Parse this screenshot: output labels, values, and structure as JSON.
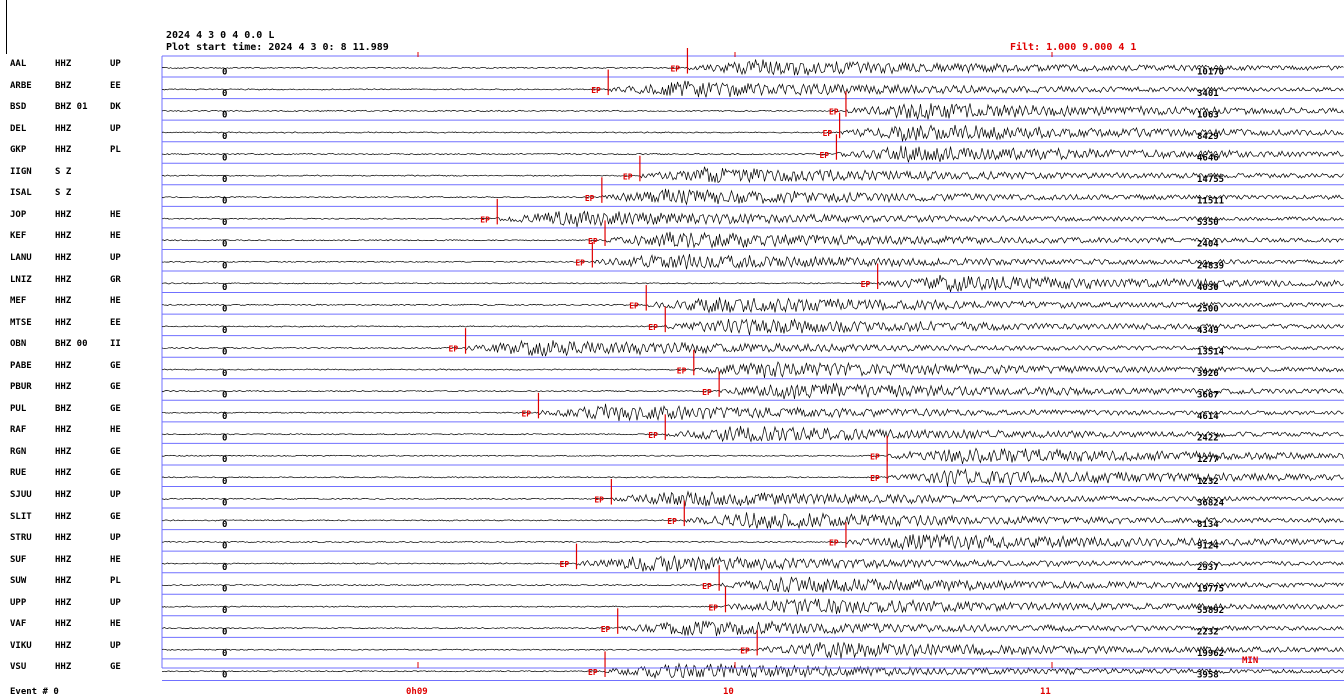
{
  "header": {
    "line1": "2024  4 3  0 4  0.0 L",
    "line2": "Plot start time: 2024   4  3    0: 8  11.989",
    "filter": "Filt:  1.000  9.000  4 1"
  },
  "stations": [
    {
      "sta": "AAL",
      "chan": "HHZ",
      "comp": "UP",
      "max": "10170",
      "pick": "EP",
      "pick_time": 9.85
    },
    {
      "sta": "ARBE",
      "chan": "BHZ",
      "comp": "EE",
      "max": "3401",
      "pick": "EP",
      "pick_time": 9.6
    },
    {
      "sta": "BSD",
      "chan": "BHZ 01",
      "comp": "DK",
      "max": "1063",
      "pick": "EP",
      "pick_time": 10.35
    },
    {
      "sta": "DEL",
      "chan": "HHZ",
      "comp": "UP",
      "max": "8429",
      "pick": "EP",
      "pick_time": 10.33
    },
    {
      "sta": "GKP",
      "chan": "HHZ",
      "comp": "PL",
      "max": "4646",
      "pick": "EP",
      "pick_time": 10.32
    },
    {
      "sta": "IIGN",
      "chan": "S Z",
      "comp": "",
      "max": "14755",
      "pick": "EP",
      "pick_time": 9.7
    },
    {
      "sta": "ISAL",
      "chan": "S Z",
      "comp": "",
      "max": "11511",
      "pick": "EP",
      "pick_time": 9.58
    },
    {
      "sta": "JOP",
      "chan": "HHZ",
      "comp": "HE",
      "max": "5350",
      "pick": "EP",
      "pick_time": 9.25
    },
    {
      "sta": "KEF",
      "chan": "HHZ",
      "comp": "HE",
      "max": "2404",
      "pick": "EP",
      "pick_time": 9.59
    },
    {
      "sta": "LANU",
      "chan": "HHZ",
      "comp": "UP",
      "max": "24839",
      "pick": "EP",
      "pick_time": 9.55
    },
    {
      "sta": "LNIZ",
      "chan": "HHZ",
      "comp": "GR",
      "max": "4030",
      "pick": "EP",
      "pick_time": 10.45
    },
    {
      "sta": "MEF",
      "chan": "HHZ",
      "comp": "HE",
      "max": "2500",
      "pick": "EP",
      "pick_time": 9.72
    },
    {
      "sta": "MTSE",
      "chan": "HHZ",
      "comp": "EE",
      "max": "4349",
      "pick": "EP",
      "pick_time": 9.78
    },
    {
      "sta": "OBN",
      "chan": "BHZ 00",
      "comp": "II",
      "max": "13514",
      "pick": "EP",
      "pick_time": 9.15
    },
    {
      "sta": "PABE",
      "chan": "HHZ",
      "comp": "GE",
      "max": "3926",
      "pick": "EP",
      "pick_time": 9.87
    },
    {
      "sta": "PBUR",
      "chan": "HHZ",
      "comp": "GE",
      "max": "3667",
      "pick": "EP",
      "pick_time": 9.95
    },
    {
      "sta": "PUL",
      "chan": "BHZ",
      "comp": "GE",
      "max": "4614",
      "pick": "EP",
      "pick_time": 9.38
    },
    {
      "sta": "RAF",
      "chan": "HHZ",
      "comp": "HE",
      "max": "2422",
      "pick": "EP",
      "pick_time": 9.78
    },
    {
      "sta": "RGN",
      "chan": "HHZ",
      "comp": "GE",
      "max": "1277",
      "pick": "EP",
      "pick_time": 10.48
    },
    {
      "sta": "RUE",
      "chan": "HHZ",
      "comp": "GE",
      "max": "1232",
      "pick": "EP",
      "pick_time": 10.48
    },
    {
      "sta": "SJUU",
      "chan": "HHZ",
      "comp": "UP",
      "max": "36824",
      "pick": "EP",
      "pick_time": 9.61
    },
    {
      "sta": "SLIT",
      "chan": "HHZ",
      "comp": "GE",
      "max": "8134",
      "pick": "EP",
      "pick_time": 9.84
    },
    {
      "sta": "STRU",
      "chan": "HHZ",
      "comp": "UP",
      "max": "9124",
      "pick": "EP",
      "pick_time": 10.35
    },
    {
      "sta": "SUF",
      "chan": "HHZ",
      "comp": "HE",
      "max": "2937",
      "pick": "EP",
      "pick_time": 9.5
    },
    {
      "sta": "SUW",
      "chan": "HHZ",
      "comp": "PL",
      "max": "19775",
      "pick": "EP",
      "pick_time": 9.95
    },
    {
      "sta": "UPP",
      "chan": "HHZ",
      "comp": "UP",
      "max": "55892",
      "pick": "EP",
      "pick_time": 9.97
    },
    {
      "sta": "VAF",
      "chan": "HHZ",
      "comp": "HE",
      "max": "2232",
      "pick": "EP",
      "pick_time": 9.63
    },
    {
      "sta": "VIKU",
      "chan": "HHZ",
      "comp": "UP",
      "max": "19962",
      "pick": "EP",
      "pick_time": 10.07
    },
    {
      "sta": "VSU",
      "chan": "HHZ",
      "comp": "GE",
      "max": "3958",
      "pick": "EP",
      "pick_time": 9.59
    }
  ],
  "trace_start_label": "0",
  "min_label": "MIN",
  "time_axis": {
    "labels": [
      "0h09",
      "10",
      "11"
    ],
    "minutes": [
      9,
      10,
      11
    ]
  },
  "event": "Event #    0",
  "colors": {
    "trace": "#000000",
    "baseline": "#7070ff",
    "pick": "#e00000",
    "text": "#000000"
  }
}
